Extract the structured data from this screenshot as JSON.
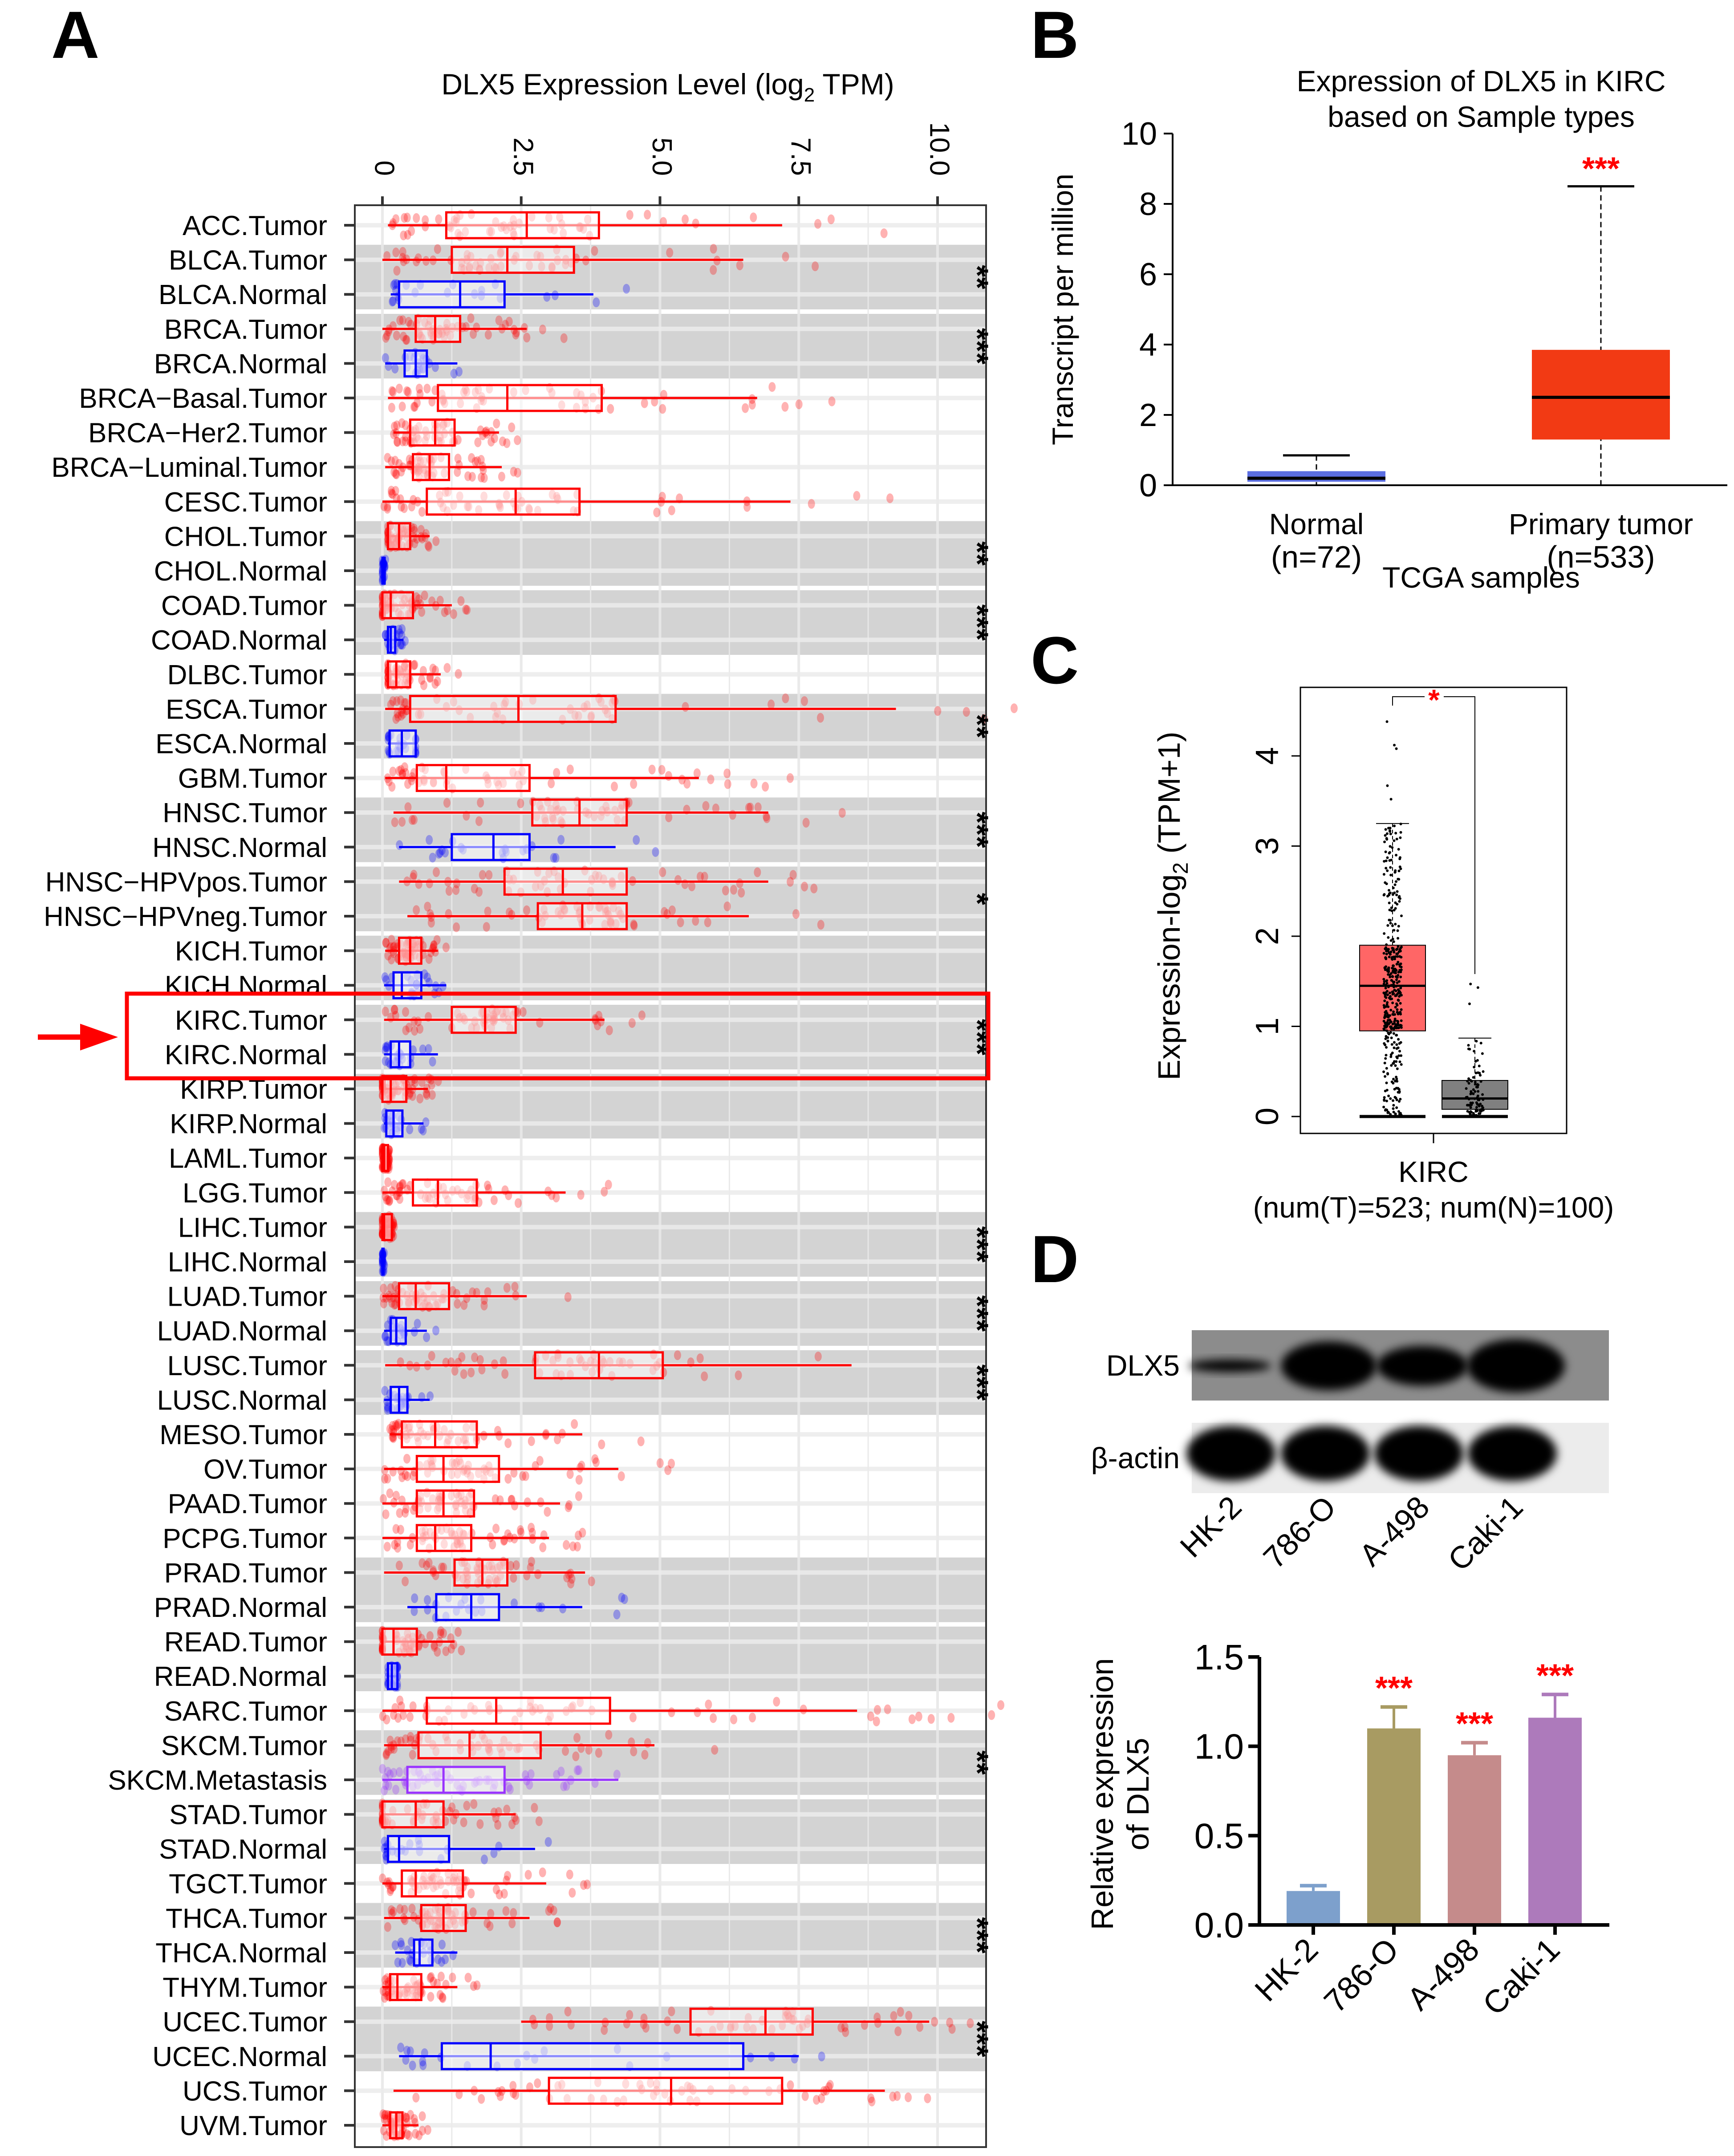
{
  "figure": {
    "panels": [
      "A",
      "B",
      "C",
      "D"
    ],
    "highlight": {
      "rows": [
        "KIRC.Tumor",
        "KIRC.Normal"
      ],
      "color": "#ff0000",
      "marker": "red-arrow"
    }
  },
  "colors": {
    "tumor": "#ff0000",
    "normal": "#0000ff",
    "metastasis": "#9933ff",
    "band": "#d3d3d3",
    "b_normal": "#5b6ee1",
    "b_tumor": "#f23a14",
    "c_tumor": "#ff6666",
    "c_normal": "#808080",
    "d_hk2": "#7da0cc",
    "d_786o": "#a89b62",
    "d_a498": "#c58b8b",
    "d_caki1": "#ad7abb",
    "significance": "#ff0000"
  },
  "chart_data": [
    {
      "panel": "A",
      "type": "box",
      "orientation": "horizontal",
      "title": "DLX5 Expression Level (log2 TPM)",
      "title_main": "DLX5 Expression Level (log",
      "title_sub": "2",
      "title_end": " TPM)",
      "xlim": [
        0,
        10.5
      ],
      "xticks": [
        0,
        2.5,
        5.0,
        7.5,
        10.0
      ],
      "xtick_labels": [
        "0",
        "2.5",
        "5.0",
        "7.5",
        "10.0"
      ],
      "grid": true,
      "stats_order": [
        "min",
        "q1",
        "median",
        "q3",
        "max"
      ],
      "rows": [
        {
          "label": "ACC.Tumor",
          "type": "Tumor",
          "stats": [
            0.1,
            1.15,
            2.6,
            3.9,
            7.2
          ]
        },
        {
          "label": "BLCA.Tumor",
          "type": "Tumor",
          "stats": [
            0,
            1.25,
            2.25,
            3.45,
            6.5
          ]
        },
        {
          "label": "BLCA.Normal",
          "type": "Normal",
          "stats": [
            0.15,
            0.3,
            1.4,
            2.2,
            3.8
          ]
        },
        {
          "label": "BRCA.Tumor",
          "type": "Tumor",
          "stats": [
            0,
            0.6,
            0.95,
            1.4,
            2.6
          ]
        },
        {
          "label": "BRCA.Normal",
          "type": "Normal",
          "stats": [
            0.05,
            0.4,
            0.6,
            0.8,
            1.35
          ]
        },
        {
          "label": "BRCA−Basal.Tumor",
          "type": "Tumor",
          "stats": [
            0.1,
            1.0,
            2.25,
            3.95,
            6.75
          ]
        },
        {
          "label": "BRCA−Her2.Tumor",
          "type": "Tumor",
          "stats": [
            0.2,
            0.5,
            0.95,
            1.3,
            2.1
          ]
        },
        {
          "label": "BRCA−Luminal.Tumor",
          "type": "Tumor",
          "stats": [
            0.05,
            0.55,
            0.85,
            1.2,
            2.15
          ]
        },
        {
          "label": "CESC.Tumor",
          "type": "Tumor",
          "stats": [
            0,
            0.8,
            2.4,
            3.55,
            7.35
          ]
        },
        {
          "label": "CHOL.Tumor",
          "type": "Tumor",
          "stats": [
            0.1,
            0.1,
            0.3,
            0.5,
            0.85
          ]
        },
        {
          "label": "CHOL.Normal",
          "type": "Normal",
          "stats": [
            0,
            0,
            0.02,
            0.04,
            0.06
          ]
        },
        {
          "label": "COAD.Tumor",
          "type": "Tumor",
          "stats": [
            0,
            0,
            0.15,
            0.55,
            1.25
          ]
        },
        {
          "label": "COAD.Normal",
          "type": "Normal",
          "stats": [
            0.03,
            0.1,
            0.15,
            0.23,
            0.38
          ]
        },
        {
          "label": "DLBC.Tumor",
          "type": "Tumor",
          "stats": [
            0.1,
            0.1,
            0.25,
            0.5,
            1.05
          ]
        },
        {
          "label": "ESCA.Tumor",
          "type": "Tumor",
          "stats": [
            0.05,
            0.5,
            2.45,
            4.2,
            9.25
          ]
        },
        {
          "label": "ESCA.Normal",
          "type": "Normal",
          "stats": [
            0.1,
            0.13,
            0.35,
            0.6,
            0.6
          ]
        },
        {
          "label": "GBM.Tumor",
          "type": "Tumor",
          "stats": [
            0.05,
            0.62,
            1.15,
            2.65,
            5.7
          ]
        },
        {
          "label": "HNSC.Tumor",
          "type": "Tumor",
          "stats": [
            0.2,
            2.7,
            3.55,
            4.4,
            6.95
          ]
        },
        {
          "label": "HNSC.Normal",
          "type": "Normal",
          "stats": [
            0.3,
            1.25,
            2.0,
            2.65,
            4.2
          ]
        },
        {
          "label": "HNSC−HPVpos.Tumor",
          "type": "Tumor",
          "stats": [
            0.3,
            2.2,
            3.25,
            4.4,
            6.95
          ]
        },
        {
          "label": "HNSC−HPVneg.Tumor",
          "type": "Tumor",
          "stats": [
            0.45,
            2.8,
            3.6,
            4.4,
            6.6
          ]
        },
        {
          "label": "KICH.Tumor",
          "type": "Tumor",
          "stats": [
            0.05,
            0.3,
            0.5,
            0.7,
            1.0
          ]
        },
        {
          "label": "KICH.Normal",
          "type": "Normal",
          "stats": [
            0.03,
            0.2,
            0.35,
            0.7,
            1.15
          ]
        },
        {
          "label": "KIRC.Tumor",
          "type": "Tumor",
          "stats": [
            0.03,
            1.25,
            1.85,
            2.4,
            4.0
          ]
        },
        {
          "label": "KIRC.Normal",
          "type": "Normal",
          "stats": [
            0.03,
            0.15,
            0.3,
            0.5,
            1.0
          ]
        },
        {
          "label": "KIRP.Tumor",
          "type": "Tumor",
          "stats": [
            0,
            0,
            0.15,
            0.43,
            0.82
          ]
        },
        {
          "label": "KIRP.Normal",
          "type": "Normal",
          "stats": [
            0.03,
            0.07,
            0.2,
            0.36,
            0.74
          ]
        },
        {
          "label": "LAML.Tumor",
          "type": "Tumor",
          "stats": [
            0,
            0,
            0.03,
            0.1,
            0.12
          ]
        },
        {
          "label": "LGG.Tumor",
          "type": "Tumor",
          "stats": [
            0,
            0.55,
            1.0,
            1.7,
            3.3
          ]
        },
        {
          "label": "LIHC.Tumor",
          "type": "Tumor",
          "stats": [
            0,
            0,
            0.03,
            0.17,
            0.2
          ]
        },
        {
          "label": "LIHC.Normal",
          "type": "Normal",
          "stats": [
            0,
            0,
            0,
            0.02,
            0.03
          ]
        },
        {
          "label": "LUAD.Tumor",
          "type": "Tumor",
          "stats": [
            0,
            0.3,
            0.6,
            1.2,
            2.6
          ]
        },
        {
          "label": "LUAD.Normal",
          "type": "Normal",
          "stats": [
            0.03,
            0.15,
            0.25,
            0.42,
            0.8
          ]
        },
        {
          "label": "LUSC.Tumor",
          "type": "Tumor",
          "stats": [
            0.05,
            2.75,
            3.9,
            5.05,
            8.45
          ]
        },
        {
          "label": "LUSC.Normal",
          "type": "Normal",
          "stats": [
            0.03,
            0.15,
            0.3,
            0.45,
            0.85
          ]
        },
        {
          "label": "MESO.Tumor",
          "type": "Tumor",
          "stats": [
            0.13,
            0.35,
            0.95,
            1.7,
            3.6
          ]
        },
        {
          "label": "OV.Tumor",
          "type": "Tumor",
          "stats": [
            0.03,
            0.62,
            1.1,
            2.1,
            4.25
          ]
        },
        {
          "label": "PAAD.Tumor",
          "type": "Tumor",
          "stats": [
            0,
            0.62,
            1.1,
            1.65,
            3.2
          ]
        },
        {
          "label": "PCPG.Tumor",
          "type": "Tumor",
          "stats": [
            0,
            0.62,
            0.95,
            1.6,
            3.0
          ]
        },
        {
          "label": "PRAD.Tumor",
          "type": "Tumor",
          "stats": [
            0.03,
            1.3,
            1.8,
            2.25,
            3.65
          ]
        },
        {
          "label": "PRAD.Normal",
          "type": "Normal",
          "stats": [
            0.45,
            0.97,
            1.6,
            2.1,
            3.6
          ]
        },
        {
          "label": "READ.Tumor",
          "type": "Tumor",
          "stats": [
            0,
            0,
            0.2,
            0.62,
            1.3
          ]
        },
        {
          "label": "READ.Normal",
          "type": "Normal",
          "stats": [
            0.1,
            0.1,
            0.17,
            0.27,
            0.27
          ]
        },
        {
          "label": "SARC.Tumor",
          "type": "Tumor",
          "stats": [
            0,
            0.8,
            2.05,
            4.1,
            8.55
          ]
        },
        {
          "label": "SKCM.Tumor",
          "type": "Tumor",
          "stats": [
            0.03,
            0.65,
            1.57,
            2.85,
            4.9
          ]
        },
        {
          "label": "SKCM.Metastasis",
          "type": "Metastasis",
          "stats": [
            0,
            0.45,
            1.1,
            2.2,
            4.25
          ]
        },
        {
          "label": "STAD.Tumor",
          "type": "Tumor",
          "stats": [
            0,
            0,
            0.6,
            1.1,
            2.4
          ]
        },
        {
          "label": "STAD.Normal",
          "type": "Normal",
          "stats": [
            0.03,
            0.1,
            0.3,
            1.2,
            2.75
          ]
        },
        {
          "label": "TGCT.Tumor",
          "type": "Tumor",
          "stats": [
            0,
            0.35,
            0.6,
            1.45,
            2.95
          ]
        },
        {
          "label": "THCA.Tumor",
          "type": "Tumor",
          "stats": [
            0.03,
            0.7,
            1.1,
            1.5,
            2.65
          ]
        },
        {
          "label": "THCA.Normal",
          "type": "Normal",
          "stats": [
            0.23,
            0.57,
            0.67,
            0.9,
            1.35
          ]
        },
        {
          "label": "THYM.Tumor",
          "type": "Tumor",
          "stats": [
            0,
            0.14,
            0.27,
            0.7,
            1.35
          ]
        },
        {
          "label": "UCEC.Tumor",
          "type": "Tumor",
          "stats": [
            2.5,
            5.55,
            6.9,
            7.75,
            9.85
          ]
        },
        {
          "label": "UCEC.Normal",
          "type": "Normal",
          "stats": [
            0.3,
            1.07,
            1.95,
            6.5,
            7.5
          ]
        },
        {
          "label": "UCS.Tumor",
          "type": "Tumor",
          "stats": [
            0.2,
            3.0,
            5.2,
            7.2,
            9.05
          ]
        },
        {
          "label": "UVM.Tumor",
          "type": "Tumor",
          "stats": [
            0,
            0.14,
            0.25,
            0.36,
            0.65
          ]
        }
      ],
      "shaded_groups": [
        {
          "rows": [
            1,
            2
          ],
          "significance": "**"
        },
        {
          "rows": [
            3,
            4
          ],
          "significance": "***"
        },
        {
          "rows": [
            9,
            10
          ],
          "significance": "**"
        },
        {
          "rows": [
            11,
            12
          ],
          "significance": "***"
        },
        {
          "rows": [
            14,
            15
          ],
          "significance": "**"
        },
        {
          "rows": [
            17,
            18
          ],
          "significance": "***"
        },
        {
          "rows": [
            19,
            20
          ],
          "significance": "*"
        },
        {
          "rows": [
            21,
            22
          ],
          "significance": ""
        },
        {
          "rows": [
            23,
            24
          ],
          "significance": "***"
        },
        {
          "rows": [
            25,
            26
          ],
          "significance": ""
        },
        {
          "rows": [
            29,
            30
          ],
          "significance": "***"
        },
        {
          "rows": [
            31,
            32
          ],
          "significance": "***"
        },
        {
          "rows": [
            33,
            34
          ],
          "significance": "***"
        },
        {
          "rows": [
            39,
            40
          ],
          "significance": ""
        },
        {
          "rows": [
            41,
            42
          ],
          "significance": ""
        },
        {
          "rows": [
            44,
            45
          ],
          "significance": "**"
        },
        {
          "rows": [
            46,
            47
          ],
          "significance": ""
        },
        {
          "rows": [
            49,
            50
          ],
          "significance": "***"
        },
        {
          "rows": [
            52,
            53
          ],
          "significance": "***"
        }
      ]
    },
    {
      "panel": "B",
      "type": "box",
      "title": "Expression of DLX5 in KIRC based on Sample types",
      "title_lines": [
        "Expression of DLX5 in KIRC",
        "based on Sample types"
      ],
      "xlabel": "TCGA samples",
      "ylabel": "Transcript per million",
      "ylim": [
        0,
        10
      ],
      "yticks": [
        0,
        2,
        4,
        6,
        8,
        10
      ],
      "stats_order": [
        "min",
        "q1",
        "median",
        "q3",
        "max"
      ],
      "groups": [
        {
          "name": "Normal",
          "n_label": "(n=72)",
          "stats": [
            0,
            0.1,
            0.2,
            0.4,
            0.85
          ],
          "significance": ""
        },
        {
          "name": "Primary tumor",
          "n_label": "(n=533)",
          "stats": [
            0,
            1.3,
            2.5,
            3.85,
            8.5
          ],
          "significance": "***"
        }
      ]
    },
    {
      "panel": "C",
      "type": "box",
      "ylabel": "Expression-log2 (TPM+1)",
      "ylabel_main": "Expression-log",
      "ylabel_sub": "2",
      "ylabel_end": " (TPM+1)",
      "ylim": [
        -0.15,
        4.8
      ],
      "yticks": [
        0,
        1,
        2,
        3,
        4
      ],
      "category": "KIRC",
      "n_label": "(num(T)=523; num(N)=100)",
      "stats_order": [
        "min",
        "q1",
        "median",
        "q3",
        "max"
      ],
      "groups": [
        {
          "name": "Tumor",
          "stats": [
            0,
            0.95,
            1.45,
            1.9,
            3.25
          ],
          "outliers": [
            3.52,
            3.67,
            4.08,
            4.12,
            4.38
          ]
        },
        {
          "name": "Normal",
          "stats": [
            0,
            0.08,
            0.2,
            0.4,
            0.87
          ],
          "outliers": [
            1.25,
            1.43,
            1.47
          ]
        }
      ],
      "significance": "*"
    },
    {
      "panel": "D",
      "type": "bar",
      "categories": [
        "HK-2",
        "786-O",
        "A-498",
        "Caki-1"
      ],
      "values": [
        0.19,
        1.1,
        0.95,
        1.16
      ],
      "error_upper": [
        0.22,
        1.22,
        1.02,
        1.29
      ],
      "significance": [
        "",
        "***",
        "***",
        "***"
      ],
      "ylabel": "Relative expression of DLX5",
      "ylabel_lines": [
        "Relative expression",
        "of DLX5"
      ],
      "ylim": [
        0,
        1.5
      ],
      "yticks": [
        "0.0",
        "0.5",
        "1.0",
        "1.5"
      ]
    }
  ],
  "western_blot": {
    "rows": [
      {
        "label": "DLX5",
        "band_intensity": [
          0.35,
          1.0,
          0.85,
          1.0
        ]
      },
      {
        "label": "β-actin",
        "band_intensity": [
          1.0,
          1.0,
          1.0,
          1.0
        ]
      }
    ],
    "lanes": [
      "HK-2",
      "786-O",
      "A-498",
      "Caki-1"
    ]
  }
}
